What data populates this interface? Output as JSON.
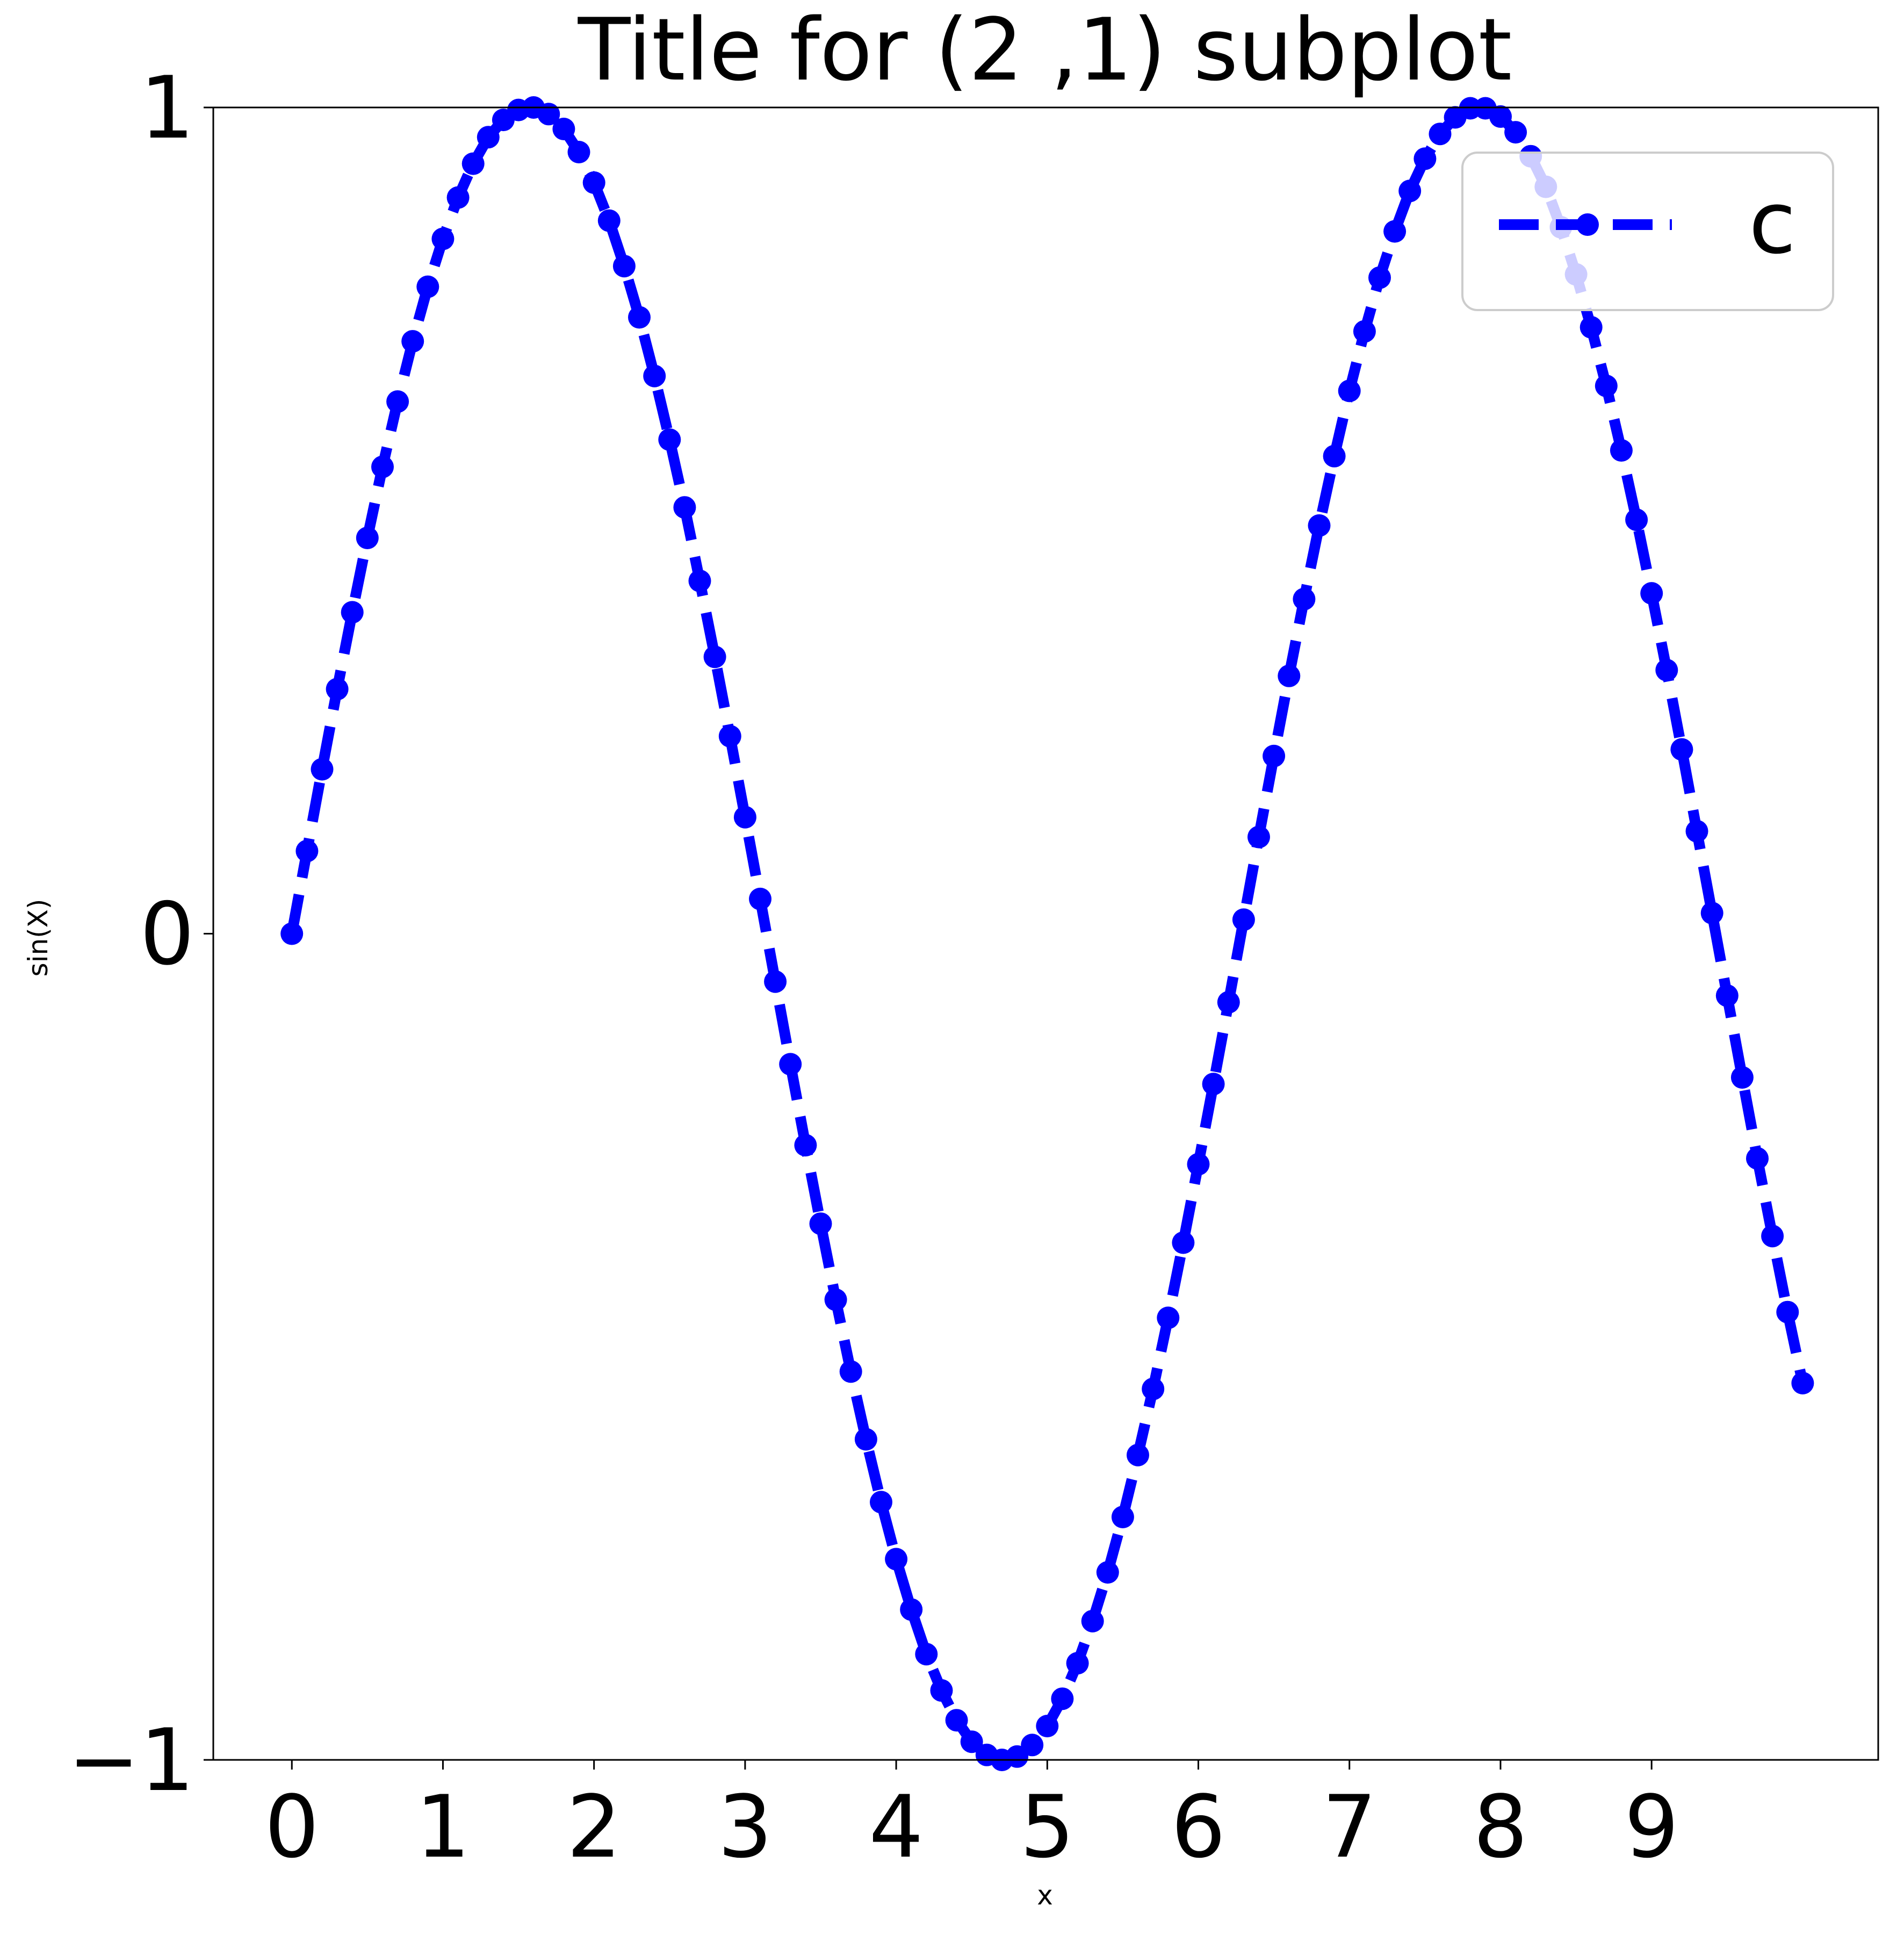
{
  "chart_data": {
    "type": "line",
    "title": "Title for (2 ,1) subplot",
    "xlabel": "x",
    "ylabel": "sin(X)",
    "xlim": [
      -0.52,
      10.5
    ],
    "ylim": [
      -1,
      1
    ],
    "xticks": [
      0,
      1,
      2,
      3,
      4,
      5,
      6,
      7,
      8,
      9
    ],
    "xtick_labels": [
      "0",
      "1",
      "2",
      "3",
      "4",
      "5",
      "6",
      "7",
      "8",
      "9"
    ],
    "yticks": [
      1,
      0,
      -1
    ],
    "ytick_labels": [
      "1",
      "0",
      "−1"
    ],
    "grid": false,
    "legend": {
      "placement": "top-right",
      "entries": [
        "c"
      ]
    },
    "series": [
      {
        "name": "c",
        "color": "#0000ff",
        "linestyle": "dashed",
        "marker": "circle",
        "x_start": 0.0,
        "x_step": 0.1,
        "x": [
          0.0,
          0.1,
          0.2,
          0.3,
          0.4,
          0.5,
          0.6,
          0.7,
          0.8,
          0.9,
          1.0,
          1.1,
          1.2,
          1.3,
          1.4,
          1.5,
          1.6,
          1.7,
          1.8,
          1.9,
          2.0,
          2.1,
          2.2,
          2.3,
          2.4,
          2.5,
          2.6,
          2.7,
          2.8,
          2.9,
          3.0,
          3.1,
          3.2,
          3.3,
          3.4,
          3.5,
          3.6,
          3.7,
          3.8,
          3.9,
          4.0,
          4.1,
          4.2,
          4.3,
          4.4,
          4.5,
          4.6,
          4.7,
          4.8,
          4.9,
          5.0,
          5.1,
          5.2,
          5.3,
          5.4,
          5.5,
          5.6,
          5.7,
          5.8,
          5.9,
          6.0,
          6.1,
          6.2,
          6.3,
          6.4,
          6.5,
          6.6,
          6.7,
          6.8,
          6.9,
          7.0,
          7.1,
          7.2,
          7.3,
          7.4,
          7.5,
          7.6,
          7.7,
          7.8,
          7.9,
          8.0,
          8.1,
          8.2,
          8.3,
          8.4,
          8.5,
          8.6,
          8.7,
          8.8,
          8.9,
          9.0,
          9.1,
          9.2,
          9.3,
          9.4,
          9.5,
          9.6,
          9.7,
          9.8,
          9.9,
          10.0
        ],
        "y": [
          0.0,
          0.1,
          0.199,
          0.296,
          0.389,
          0.479,
          0.565,
          0.644,
          0.717,
          0.783,
          0.841,
          0.891,
          0.932,
          0.964,
          0.985,
          0.997,
          1.0,
          0.992,
          0.974,
          0.946,
          0.909,
          0.863,
          0.808,
          0.746,
          0.675,
          0.598,
          0.516,
          0.427,
          0.335,
          0.239,
          0.141,
          0.042,
          -0.058,
          -0.158,
          -0.256,
          -0.351,
          -0.443,
          -0.53,
          -0.612,
          -0.688,
          -0.757,
          -0.818,
          -0.872,
          -0.916,
          -0.952,
          -0.978,
          -0.994,
          -1.0,
          -0.996,
          -0.982,
          -0.959,
          -0.926,
          -0.883,
          -0.832,
          -0.773,
          -0.706,
          -0.631,
          -0.551,
          -0.465,
          -0.374,
          -0.279,
          -0.182,
          -0.083,
          0.017,
          0.117,
          0.215,
          0.312,
          0.405,
          0.494,
          0.578,
          0.657,
          0.729,
          0.794,
          0.85,
          0.899,
          0.938,
          0.968,
          0.988,
          0.999,
          0.999,
          0.989,
          0.97,
          0.941,
          0.904,
          0.855,
          0.798,
          0.734,
          0.663,
          0.585,
          0.501,
          0.412,
          0.319,
          0.223,
          0.124,
          0.025,
          -0.075,
          -0.174,
          -0.272,
          -0.366,
          -0.458,
          -0.544
        ]
      }
    ]
  }
}
